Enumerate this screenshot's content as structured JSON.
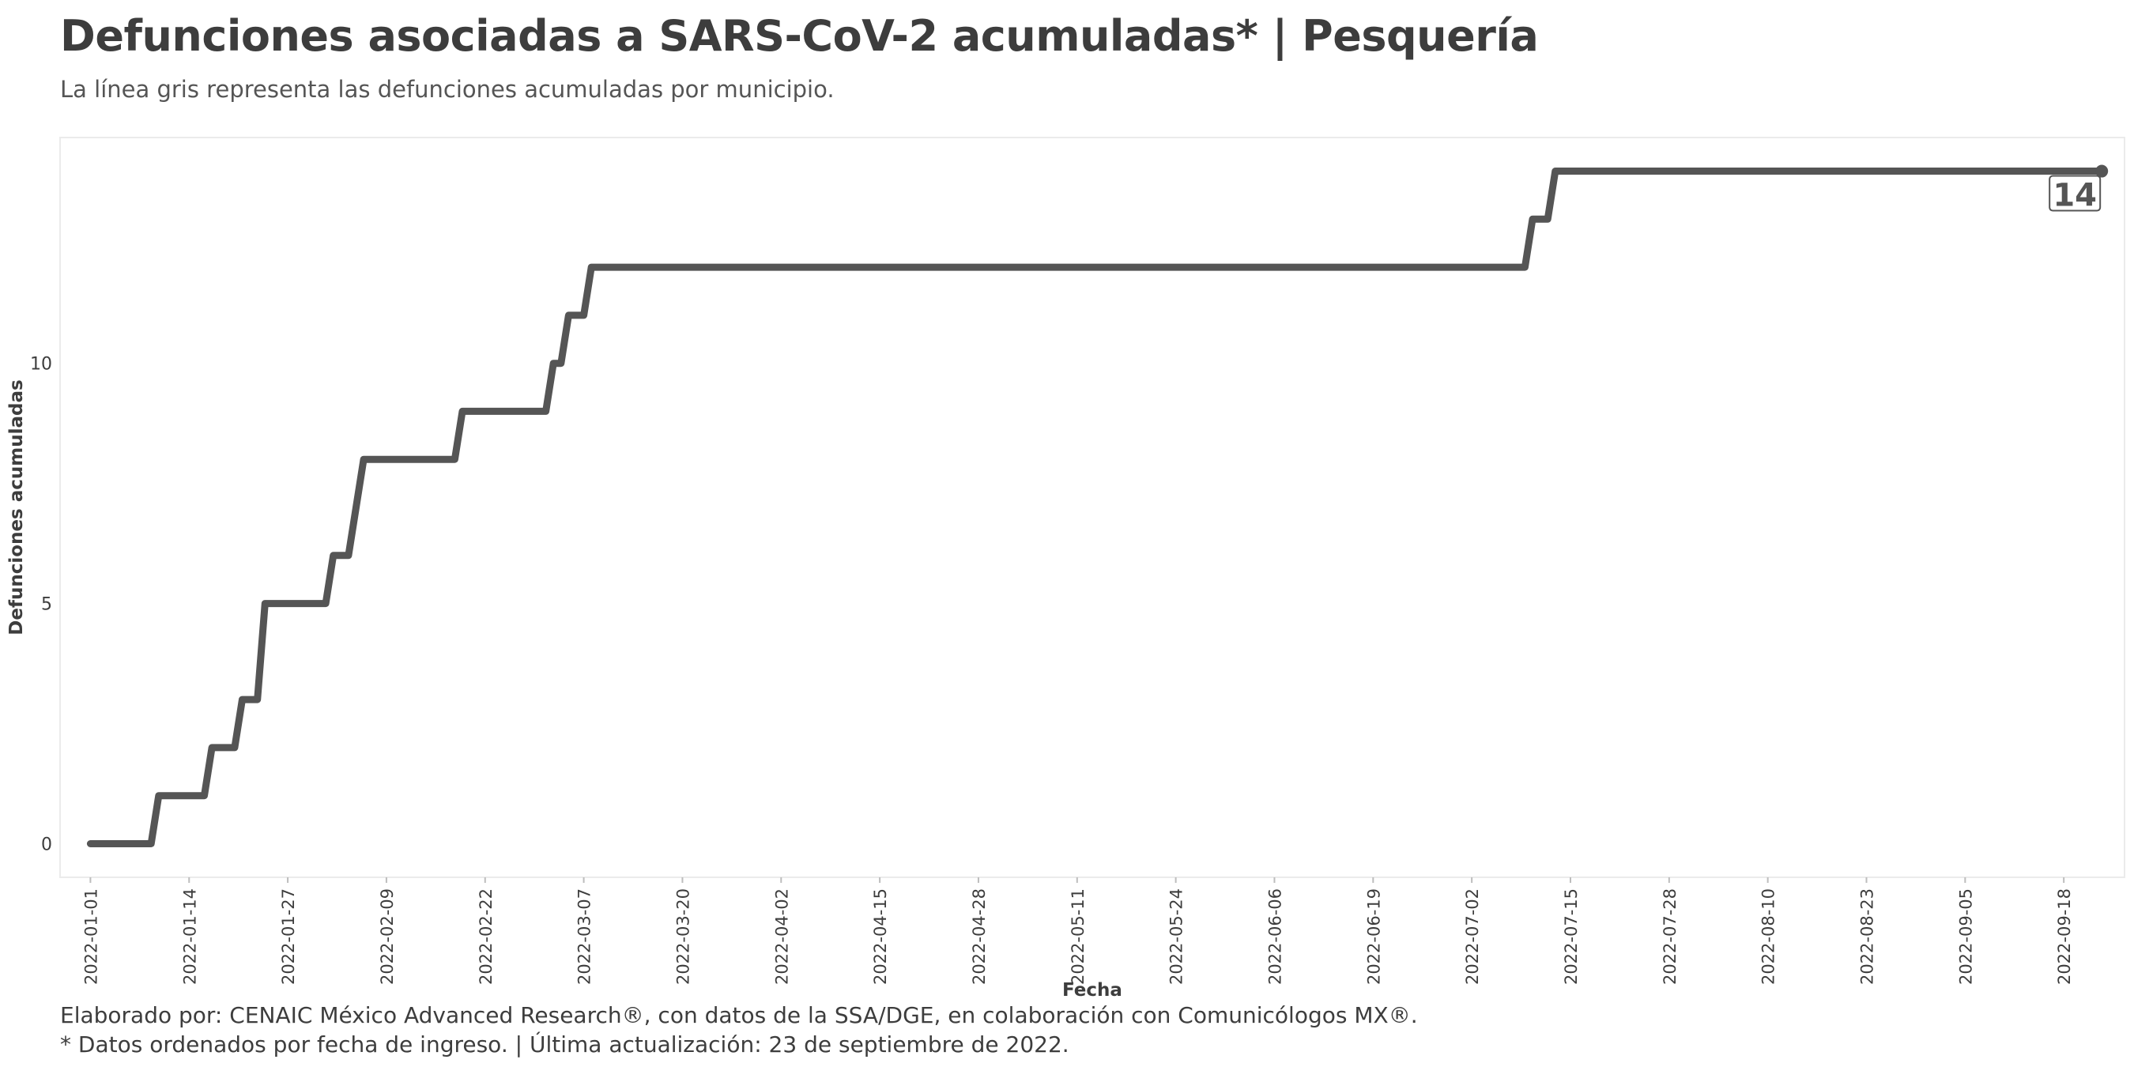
{
  "chart_data": {
    "type": "line",
    "title": "Defunciones asociadas a SARS-CoV-2 acumuladas* | Pesquería",
    "subtitle": "La línea gris representa las defunciones acumuladas por municipio.",
    "xlabel": "Fecha",
    "ylabel": "Defunciones acumuladas",
    "x_type": "date",
    "xlim": [
      "2021-12-28",
      "2022-09-26"
    ],
    "ylim": [
      -0.7,
      14.7
    ],
    "x_ticks": [
      "2022-01-01",
      "2022-01-14",
      "2022-01-27",
      "2022-02-09",
      "2022-02-22",
      "2022-03-07",
      "2022-03-20",
      "2022-04-02",
      "2022-04-15",
      "2022-04-28",
      "2022-05-11",
      "2022-05-24",
      "2022-06-06",
      "2022-06-19",
      "2022-07-02",
      "2022-07-15",
      "2022-07-28",
      "2022-08-10",
      "2022-08-23",
      "2022-09-05",
      "2022-09-18"
    ],
    "y_ticks": [
      0,
      5,
      10
    ],
    "grid": false,
    "line_color": "#555555",
    "series": [
      {
        "x": [
          "2022-01-01",
          "2022-01-09",
          "2022-01-10",
          "2022-01-16",
          "2022-01-17",
          "2022-01-20",
          "2022-01-21",
          "2022-01-23",
          "2022-01-24",
          "2022-02-01",
          "2022-02-02",
          "2022-02-04",
          "2022-02-06",
          "2022-02-18",
          "2022-02-19",
          "2022-03-02",
          "2022-03-03",
          "2022-03-04",
          "2022-03-05",
          "2022-03-07",
          "2022-03-08",
          "2022-07-09",
          "2022-07-10",
          "2022-07-12",
          "2022-07-13",
          "2022-09-23"
        ],
        "y": [
          0,
          0,
          1,
          1,
          2,
          2,
          3,
          3,
          5,
          5,
          6,
          6,
          8,
          8,
          9,
          9,
          10,
          10,
          11,
          11,
          12,
          12,
          13,
          13,
          14,
          14
        ]
      }
    ],
    "annotations": [
      {
        "x": "2022-09-23",
        "y": 14,
        "text": "14"
      }
    ]
  },
  "caption": {
    "line1": "Elaborado por: CENAIC México Advanced Research®, con datos de la SSA/DGE, en colaboración con Comunicólogos MX®.",
    "line2": "* Datos ordenados por fecha de ingreso. | Última actualización: 23 de septiembre de 2022."
  }
}
